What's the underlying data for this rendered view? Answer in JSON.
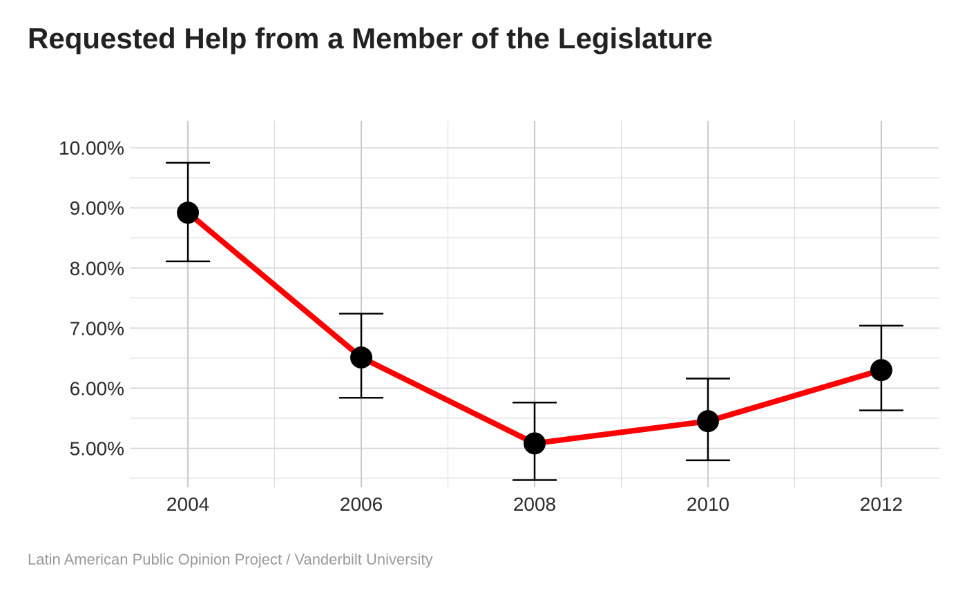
{
  "chart_data": {
    "type": "line",
    "title": "Requested Help from a Member of the Legislature",
    "caption": "Latin American Public Opinion Project / Vanderbilt University",
    "xlabel": "",
    "ylabel": "",
    "x": [
      2004,
      2006,
      2008,
      2010,
      2012
    ],
    "x_tick_labels": [
      "2004",
      "2006",
      "2008",
      "2010",
      "2012"
    ],
    "y_ticks": [
      0.05,
      0.06,
      0.07,
      0.08,
      0.09,
      0.1
    ],
    "y_tick_labels": [
      "5.00%",
      "6.00%",
      "7.00%",
      "8.00%",
      "9.00%",
      "10.00%"
    ],
    "xlim": [
      2003.33,
      2012.67
    ],
    "ylim": [
      0.0435,
      0.1045
    ],
    "grid": true,
    "series": [
      {
        "values": [
          0.0892,
          0.0651,
          0.0508,
          0.0545,
          0.063
        ],
        "ci_low": [
          0.0811,
          0.0584,
          0.0447,
          0.048,
          0.0563
        ],
        "ci_high": [
          0.0975,
          0.0724,
          0.0576,
          0.0616,
          0.0704
        ],
        "line_color": "#ff0000",
        "marker_color": "#000000"
      }
    ]
  }
}
